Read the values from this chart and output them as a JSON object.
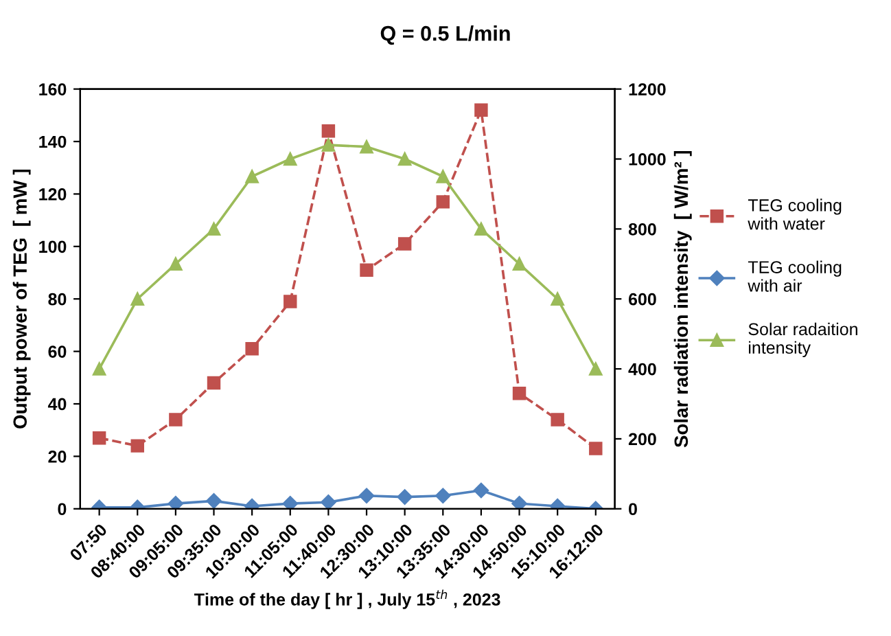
{
  "chart_data": {
    "type": "line",
    "title": "Q = 0.5 L/min",
    "xlabel": "Time of the day [ hr ] , July 15$^{th}$ , 2023",
    "ylabel": "Output power of TEG  [ mW ]",
    "y2label": "Solar radiation intensity  [ W/m² ]",
    "categories": [
      "07:50",
      "08:40:00",
      "09:05:00",
      "09:35:00",
      "10:30:00",
      "11:05:00",
      "11:40:00",
      "12:30:00",
      "13:10:00",
      "13:35:00",
      "14:30:00",
      "14:50:00",
      "15:10:00",
      "16:12:00"
    ],
    "series": [
      {
        "name": "TEG cooling with water",
        "color": "#c0504d",
        "marker": "square",
        "line_style": "dashed",
        "values": [
          27,
          24,
          34,
          48,
          61,
          79,
          144,
          91,
          101,
          117,
          152,
          44,
          34,
          23
        ]
      },
      {
        "name": "TEG cooling with air",
        "color": "#4f81bd",
        "marker": "diamond",
        "line_style": "solid",
        "values": [
          0.5,
          0.5,
          2,
          3,
          1,
          2,
          2.5,
          5,
          4.5,
          5,
          7,
          2,
          1,
          0
        ]
      },
      {
        "name": "Solar radaition intensity",
        "color": "#9bbb59",
        "marker": "triangle",
        "line_style": "solid",
        "axis": "y2",
        "values": [
          400,
          600,
          700,
          800,
          950,
          1000,
          1040,
          1035,
          1000,
          950,
          800,
          700,
          600,
          400
        ]
      }
    ],
    "ylim": [
      0,
      160
    ],
    "yticks": [
      0,
      20,
      40,
      60,
      80,
      100,
      120,
      140,
      160
    ],
    "y2lim": [
      0,
      1200
    ],
    "y2ticks": [
      0,
      200,
      400,
      600,
      800,
      1000,
      1200
    ],
    "grid": false,
    "legend": "right"
  }
}
